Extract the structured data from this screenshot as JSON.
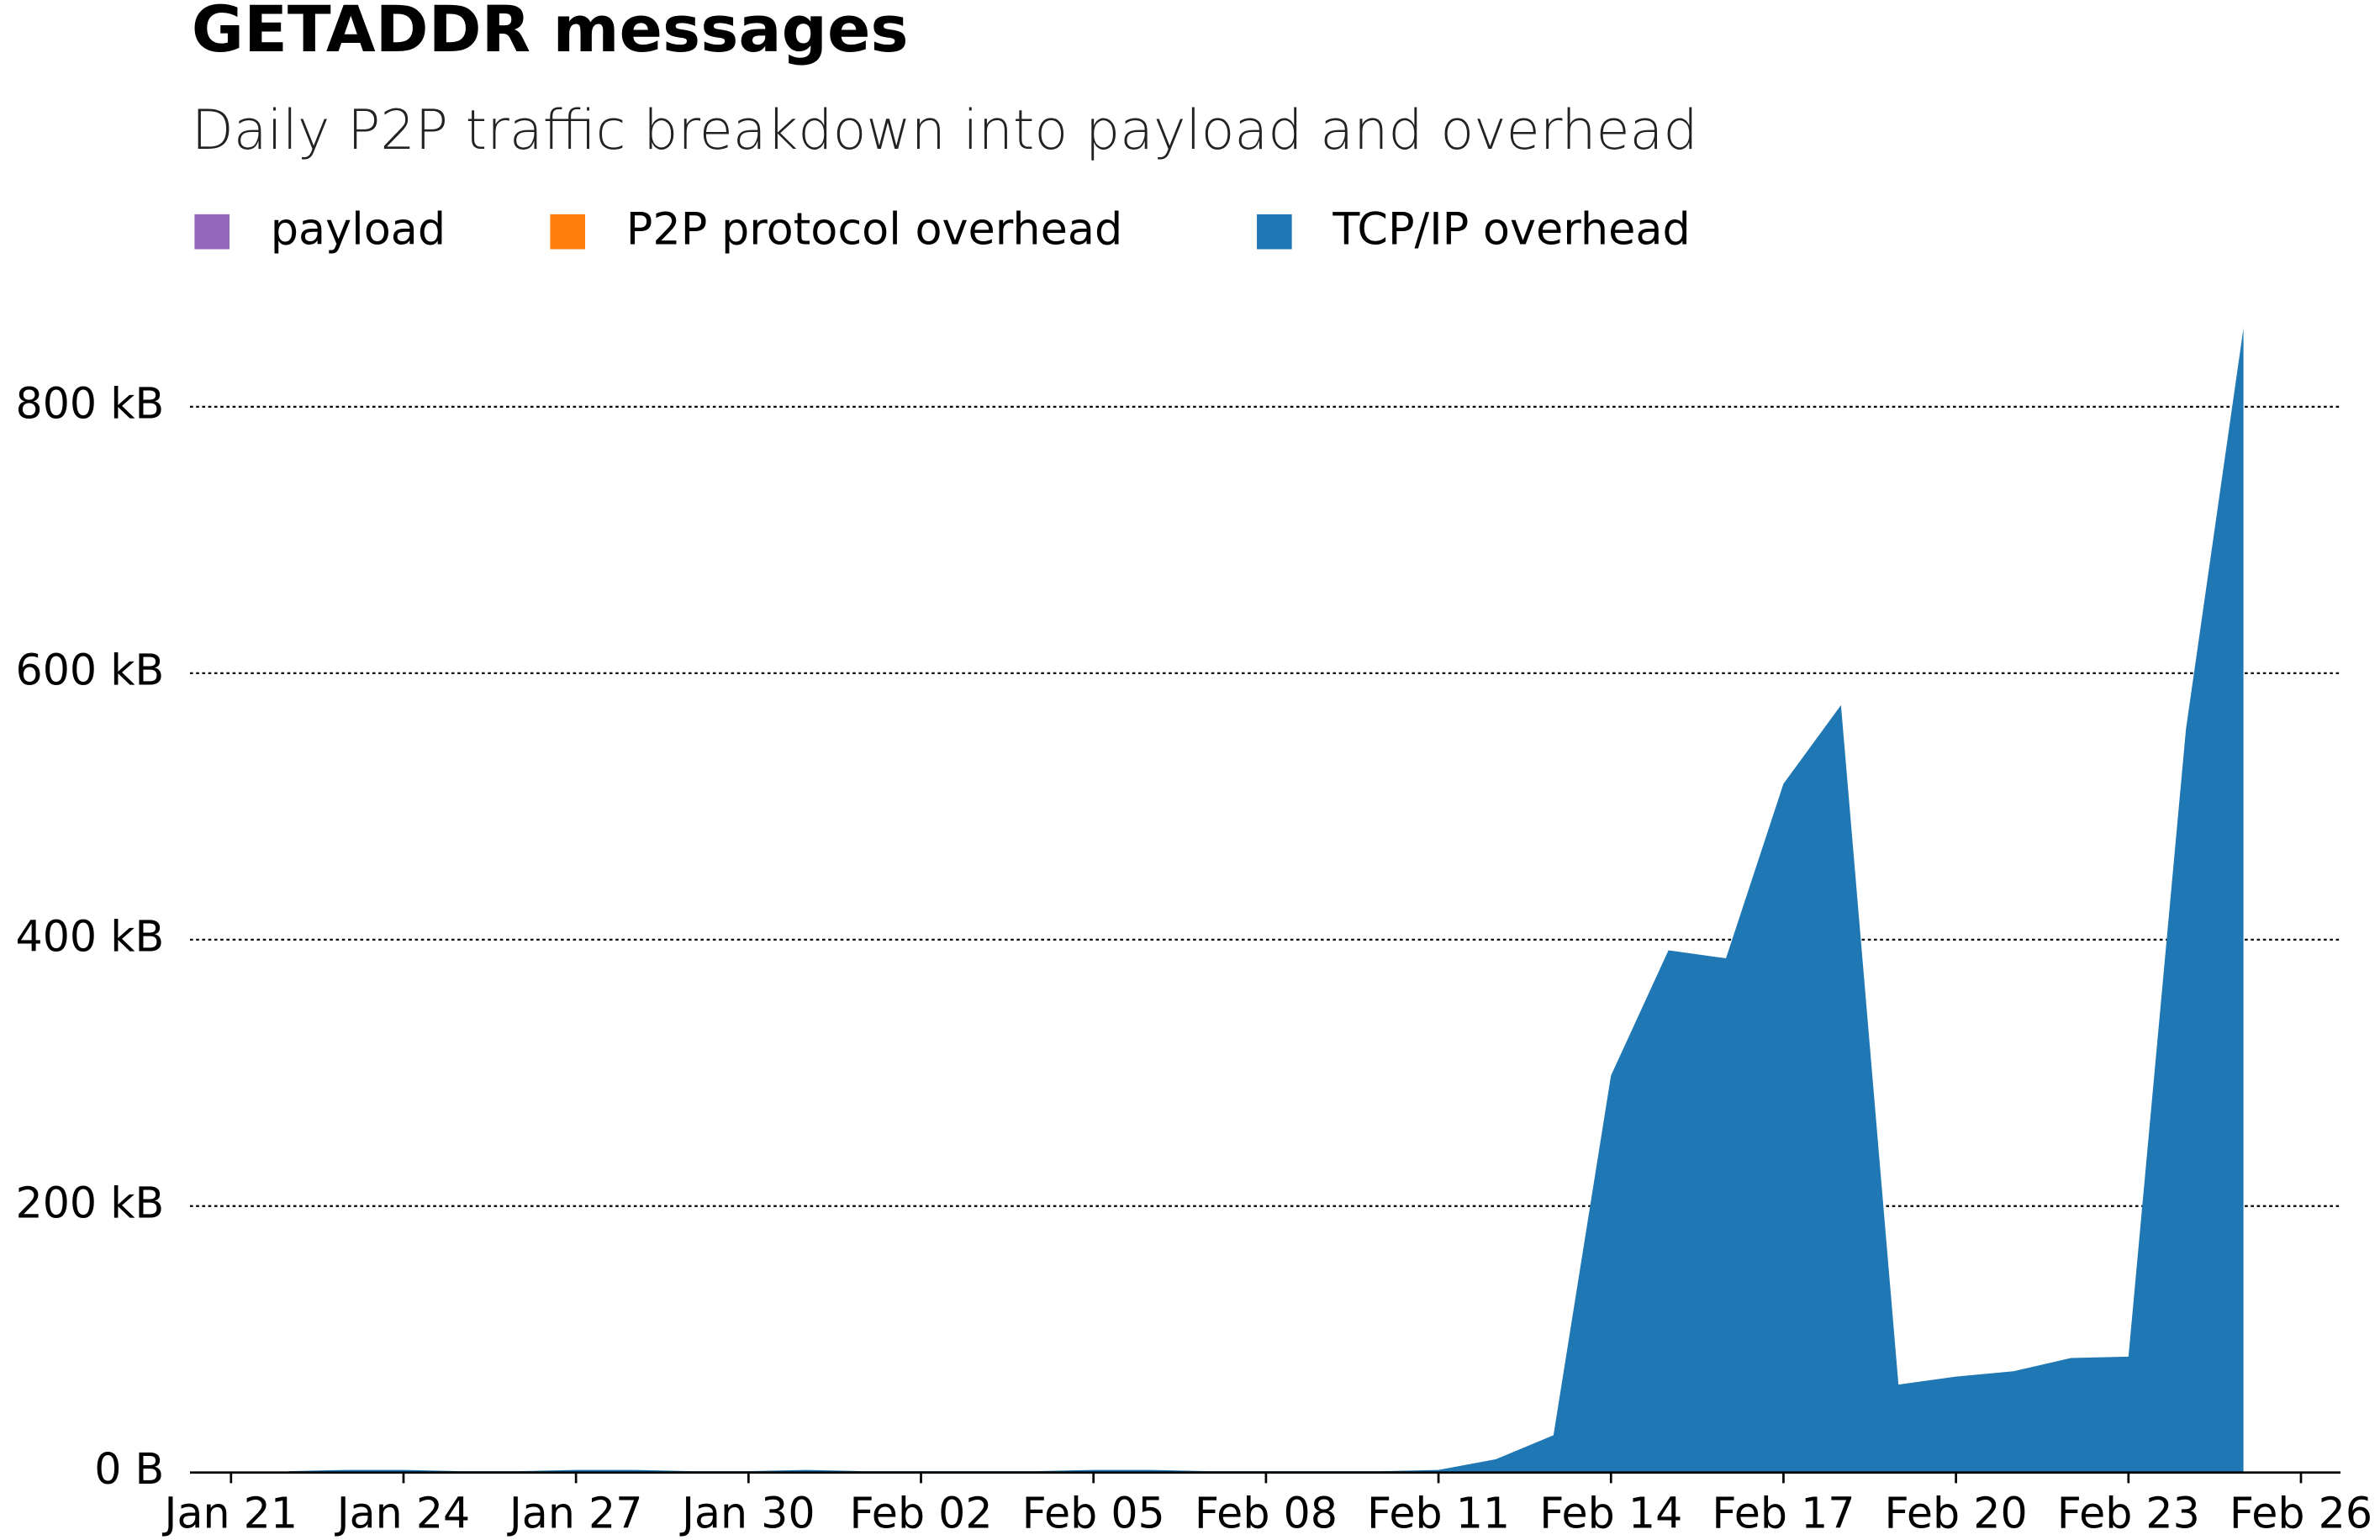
{
  "chart_data": {
    "type": "stacked_area",
    "title": "GETADDR messages",
    "subtitle": "Daily P2P traffic breakdown into payload and overhead",
    "x": [
      "Jan 22",
      "Jan 23",
      "Jan 24",
      "Jan 25",
      "Jan 26",
      "Jan 27",
      "Jan 28",
      "Jan 29",
      "Jan 30",
      "Jan 31",
      "Feb 01",
      "Feb 02",
      "Feb 03",
      "Feb 04",
      "Feb 05",
      "Feb 06",
      "Feb 07",
      "Feb 08",
      "Feb 09",
      "Feb 10",
      "Feb 11",
      "Feb 12",
      "Feb 13",
      "Feb 14",
      "Feb 15",
      "Feb 16",
      "Feb 17",
      "Feb 18",
      "Feb 19",
      "Feb 20",
      "Feb 21",
      "Feb 22",
      "Feb 23",
      "Feb 24",
      "Feb 25"
    ],
    "series": [
      {
        "name": "payload",
        "color": "#9467bd",
        "values": [
          0,
          0,
          0,
          0,
          0,
          0,
          0,
          0,
          0,
          0,
          0,
          0,
          0,
          0,
          0,
          0,
          0,
          0,
          0,
          0,
          0,
          0,
          0,
          0,
          0,
          0,
          0,
          0,
          0,
          0,
          0,
          0,
          0,
          0,
          0
        ]
      },
      {
        "name": "P2P protocol overhead",
        "color": "#ff7f0e",
        "values": [
          0,
          0,
          0,
          0,
          0,
          0,
          0,
          0,
          0,
          0,
          0,
          0,
          0,
          0,
          0,
          0,
          0,
          0,
          0,
          0,
          0,
          0,
          0,
          0,
          0,
          0,
          0,
          0,
          0,
          0,
          0,
          0,
          0,
          0,
          0
        ]
      },
      {
        "name": "TCP/IP overhead",
        "color": "#1f77b4",
        "values": [
          1,
          2,
          2,
          1,
          1,
          2,
          2,
          1,
          1,
          2,
          1,
          1,
          1,
          1,
          2,
          2,
          1,
          1,
          1,
          1,
          2,
          10,
          28,
          298,
          392,
          386,
          517,
          576,
          66,
          72,
          76,
          86,
          87,
          558,
          859
        ]
      }
    ],
    "xlim": [
      "Jan 21",
      "Feb 26"
    ],
    "xticks": [
      "Jan 21",
      "Jan 24",
      "Jan 27",
      "Jan 30",
      "Feb 02",
      "Feb 05",
      "Feb 08",
      "Feb 11",
      "Feb 14",
      "Feb 17",
      "Feb 20",
      "Feb 23",
      "Feb 26"
    ],
    "ylim": [
      0,
      900
    ],
    "yticks": [
      {
        "value": 0,
        "label": "0 B"
      },
      {
        "value": 200,
        "label": "200 kB"
      },
      {
        "value": 400,
        "label": "400 kB"
      },
      {
        "value": 600,
        "label": "600 kB"
      },
      {
        "value": 800,
        "label": "800 kB"
      }
    ],
    "grid": true
  }
}
